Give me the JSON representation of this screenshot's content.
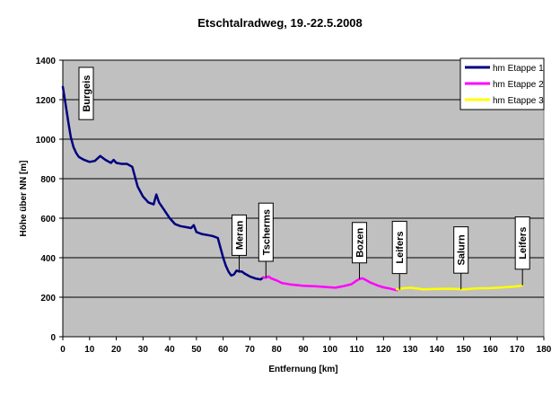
{
  "chart_data": {
    "type": "line",
    "title": "Etschtalradweg, 19.-22.5.2008",
    "xlabel": "Entfernung [km]",
    "ylabel": "Höhe über NN [m]",
    "xlim": [
      0,
      180
    ],
    "ylim": [
      0,
      1400
    ],
    "x_ticks": [
      "0",
      "10",
      "20",
      "30",
      "40",
      "50",
      "60",
      "70",
      "80",
      "90",
      "100",
      "110",
      "120",
      "130",
      "140",
      "150",
      "160",
      "170",
      "180"
    ],
    "y_ticks": [
      "0",
      "200",
      "400",
      "600",
      "800",
      "1000",
      "1200",
      "1400"
    ],
    "grid": "horizontal",
    "legend_position": "top-right",
    "background": "#c0c0c0",
    "series": [
      {
        "name": "hm Etappe 1",
        "color": "#000080",
        "x": [
          0,
          1,
          2,
          3,
          4,
          5,
          6,
          8,
          10,
          12,
          14,
          16,
          18,
          19,
          20,
          22,
          24,
          26,
          28,
          30,
          32,
          34,
          35,
          36,
          38,
          40,
          42,
          44,
          46,
          48,
          49,
          50,
          52,
          54,
          56,
          58,
          60,
          61,
          62,
          63,
          64,
          65,
          66,
          67,
          68,
          70,
          72,
          74,
          75
        ],
        "y": [
          1265,
          1180,
          1090,
          1010,
          960,
          930,
          910,
          895,
          885,
          890,
          915,
          895,
          880,
          895,
          880,
          875,
          875,
          860,
          760,
          710,
          680,
          670,
          720,
          680,
          640,
          600,
          570,
          560,
          555,
          550,
          565,
          530,
          520,
          515,
          510,
          500,
          400,
          360,
          330,
          310,
          315,
          335,
          330,
          330,
          320,
          305,
          295,
          290,
          300
        ]
      },
      {
        "name": "hm Etappe 2",
        "color": "#ff00ff",
        "x": [
          75,
          76,
          77,
          78,
          80,
          82,
          85,
          90,
          95,
          100,
          102,
          105,
          108,
          110,
          111,
          112,
          113,
          115,
          118,
          120,
          122,
          124,
          125
        ],
        "y": [
          300,
          298,
          305,
          295,
          285,
          272,
          265,
          258,
          255,
          250,
          248,
          256,
          266,
          285,
          292,
          296,
          290,
          275,
          258,
          250,
          245,
          238,
          235
        ]
      },
      {
        "name": "hm Etappe 3",
        "color": "#ffff00",
        "x": [
          125,
          127,
          130,
          135,
          140,
          145,
          150,
          155,
          160,
          165,
          170,
          172
        ],
        "y": [
          240,
          245,
          248,
          240,
          242,
          243,
          240,
          245,
          246,
          250,
          255,
          260
        ]
      }
    ],
    "annotations": [
      {
        "text": "Burgeis",
        "x": 7,
        "y": 1220,
        "style": "arrow"
      },
      {
        "text": "Meran",
        "x": 66,
        "y": 330,
        "style": "line"
      },
      {
        "text": "Tscherms",
        "x": 76,
        "y": 300,
        "style": "line"
      },
      {
        "text": "Bozen",
        "x": 111,
        "y": 292,
        "style": "line"
      },
      {
        "text": "Leifers",
        "x": 126,
        "y": 238,
        "style": "line"
      },
      {
        "text": "Salurn",
        "x": 149,
        "y": 240,
        "style": "line"
      },
      {
        "text": "Leifers",
        "x": 172,
        "y": 260,
        "style": "line"
      }
    ]
  }
}
